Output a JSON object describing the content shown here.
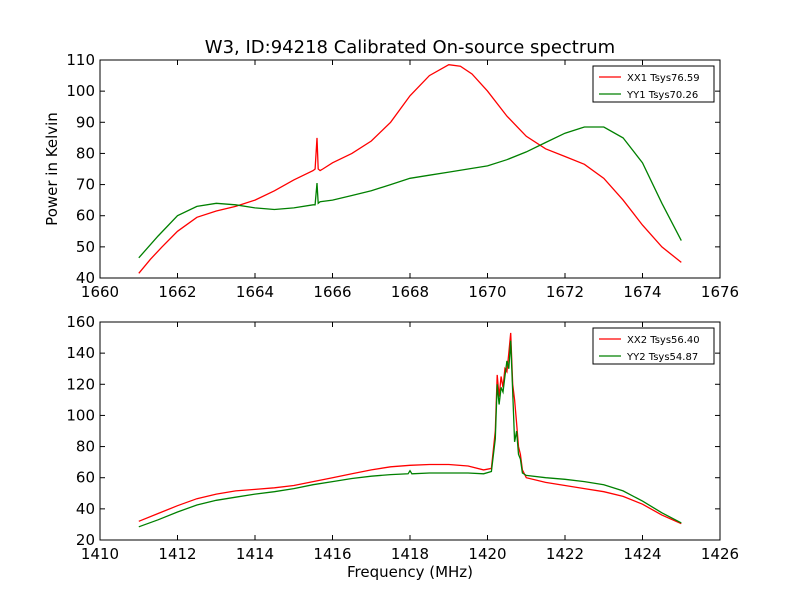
{
  "chart_data": [
    {
      "type": "line",
      "title": "W3, ID:94218 Calibrated On-source spectrum",
      "xlabel": "",
      "ylabel": "Power in Kelvin",
      "xlim": [
        1660,
        1676
      ],
      "ylim": [
        40,
        110
      ],
      "xticks": [
        1660,
        1662,
        1664,
        1666,
        1668,
        1670,
        1672,
        1674,
        1676
      ],
      "yticks": [
        40,
        50,
        60,
        70,
        80,
        90,
        100,
        110
      ],
      "legend": "top-right",
      "series": [
        {
          "name": "XX1 Tsys76.59",
          "color": "#ff0000",
          "x": [
            1661.0,
            1661.3,
            1661.6,
            1662.0,
            1662.5,
            1663.0,
            1663.5,
            1664.0,
            1664.5,
            1665.0,
            1665.5,
            1665.55,
            1665.6,
            1665.63,
            1665.68,
            1665.75,
            1666.0,
            1666.5,
            1667.0,
            1667.5,
            1668.0,
            1668.5,
            1669.0,
            1669.3,
            1669.6,
            1670.0,
            1670.5,
            1671.0,
            1671.5,
            1672.0,
            1672.5,
            1673.0,
            1673.5,
            1674.0,
            1674.5,
            1675.0
          ],
          "y": [
            41.5,
            46.0,
            50.0,
            55.0,
            59.5,
            61.5,
            63.0,
            65.0,
            68.0,
            71.5,
            74.5,
            75.0,
            85.0,
            75.0,
            74.5,
            75.0,
            77.0,
            80.0,
            84.0,
            90.0,
            98.5,
            105.0,
            108.5,
            108.0,
            105.5,
            100.0,
            92.0,
            85.5,
            81.5,
            79.0,
            76.5,
            72.0,
            65.0,
            57.0,
            50.0,
            45.0
          ]
        },
        {
          "name": "YY1 Tsys70.26",
          "color": "#008000",
          "x": [
            1661.0,
            1661.5,
            1662.0,
            1662.5,
            1663.0,
            1663.5,
            1664.0,
            1664.5,
            1665.0,
            1665.5,
            1665.55,
            1665.6,
            1665.63,
            1665.68,
            1666.0,
            1666.5,
            1667.0,
            1667.5,
            1668.0,
            1668.5,
            1669.0,
            1669.5,
            1670.0,
            1670.5,
            1671.0,
            1671.5,
            1672.0,
            1672.5,
            1673.0,
            1673.5,
            1674.0,
            1674.5,
            1675.0
          ],
          "y": [
            46.5,
            53.5,
            60.0,
            63.0,
            64.0,
            63.5,
            62.5,
            62.0,
            62.5,
            63.5,
            63.5,
            70.5,
            64.0,
            64.5,
            65.0,
            66.5,
            68.0,
            70.0,
            72.0,
            73.0,
            74.0,
            75.0,
            76.0,
            78.0,
            80.5,
            83.5,
            86.5,
            88.5,
            88.5,
            85.0,
            77.0,
            64.0,
            52.0
          ]
        }
      ]
    },
    {
      "type": "line",
      "title": "",
      "xlabel": "Frequency (MHz)",
      "ylabel": "",
      "xlim": [
        1410,
        1426
      ],
      "ylim": [
        20,
        160
      ],
      "xticks": [
        1410,
        1412,
        1414,
        1416,
        1418,
        1420,
        1422,
        1424,
        1426
      ],
      "yticks": [
        20,
        40,
        60,
        80,
        100,
        120,
        140,
        160
      ],
      "legend": "top-right",
      "series": [
        {
          "name": "XX2 Tsys56.40",
          "color": "#ff0000",
          "x": [
            1411.0,
            1411.5,
            1412.0,
            1412.5,
            1413.0,
            1413.5,
            1414.0,
            1414.5,
            1415.0,
            1415.5,
            1416.0,
            1416.5,
            1417.0,
            1417.5,
            1418.0,
            1418.5,
            1419.0,
            1419.5,
            1419.9,
            1420.1,
            1420.2,
            1420.25,
            1420.3,
            1420.35,
            1420.4,
            1420.45,
            1420.5,
            1420.55,
            1420.6,
            1420.65,
            1420.7,
            1420.75,
            1420.8,
            1420.85,
            1420.9,
            1421.0,
            1421.5,
            1422.0,
            1422.5,
            1423.0,
            1423.5,
            1424.0,
            1424.5,
            1425.0
          ],
          "y": [
            32.0,
            37.0,
            42.0,
            46.5,
            49.5,
            51.5,
            52.5,
            53.5,
            55.0,
            57.5,
            60.0,
            62.5,
            65.0,
            67.0,
            68.0,
            68.5,
            68.5,
            67.5,
            65.0,
            66.0,
            90.0,
            126.0,
            112.0,
            125.0,
            118.0,
            130.0,
            128.0,
            140.0,
            153.0,
            120.0,
            110.0,
            95.0,
            80.0,
            75.0,
            65.0,
            60.0,
            57.0,
            55.0,
            53.0,
            51.0,
            48.0,
            43.0,
            36.0,
            30.5
          ]
        },
        {
          "name": "YY2 Tsys54.87",
          "color": "#008000",
          "x": [
            1411.0,
            1411.5,
            1412.0,
            1412.5,
            1413.0,
            1413.5,
            1414.0,
            1414.5,
            1415.0,
            1415.5,
            1416.0,
            1416.5,
            1417.0,
            1417.5,
            1417.95,
            1418.0,
            1418.05,
            1418.5,
            1419.0,
            1419.5,
            1419.9,
            1420.1,
            1420.2,
            1420.25,
            1420.3,
            1420.35,
            1420.4,
            1420.45,
            1420.5,
            1420.55,
            1420.6,
            1420.65,
            1420.7,
            1420.75,
            1420.8,
            1420.85,
            1420.9,
            1421.0,
            1421.5,
            1422.0,
            1422.5,
            1423.0,
            1423.5,
            1424.0,
            1424.5,
            1425.0
          ],
          "y": [
            28.5,
            33.0,
            38.0,
            42.5,
            45.5,
            47.5,
            49.5,
            51.0,
            53.0,
            55.5,
            57.5,
            59.5,
            61.0,
            62.0,
            62.5,
            64.5,
            62.5,
            63.0,
            63.0,
            63.0,
            62.5,
            64.0,
            85.0,
            120.0,
            107.0,
            118.0,
            115.0,
            125.0,
            135.0,
            130.0,
            148.0,
            115.0,
            83.0,
            90.0,
            75.0,
            72.0,
            63.0,
            61.5,
            60.0,
            59.0,
            57.5,
            55.5,
            51.5,
            45.0,
            37.5,
            31.0
          ]
        }
      ]
    }
  ]
}
